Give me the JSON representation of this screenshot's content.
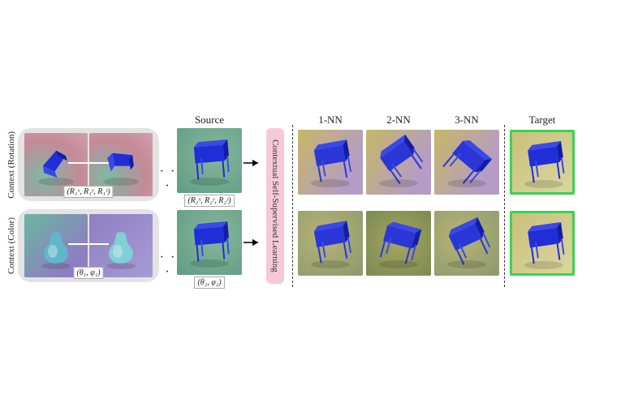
{
  "layout": {
    "figure_width": 770,
    "figure_height": 513,
    "tile_size_small": 78,
    "tile_size_med": 80,
    "context_box_bg": "#e4e3e3",
    "context_box_radius": 16,
    "cssl_bg": "#f7c9d8",
    "target_border_color": "#39d353",
    "dashed_sep_color": "#333333"
  },
  "sideLabels": {
    "rotation": "Context (Rotation)",
    "color": "Context (Color)"
  },
  "headers": {
    "source": "Source",
    "nn1": "1-NN",
    "nn2": "2-NN",
    "nn3": "3-NN",
    "target": "Target"
  },
  "cssl_label": "Contextual Self-Supervised Learning",
  "ellipsis": "· · ·",
  "context_rotation": {
    "param_label_1": "(R₁ˣ, R₁ʸ, R₁ᶻ)",
    "param_label_2": "(R₂ˣ, R₂ʸ, R₂ᶻ)",
    "tiles": [
      {
        "bg": "bg-pink-teal",
        "object": "block-blue",
        "obj_color": "#1f2ed6",
        "rot": -35
      },
      {
        "bg": "bg-pink-teal",
        "object": "block-blue",
        "obj_color": "#1f2ed6",
        "rot": 20
      }
    ],
    "source_tile": {
      "bg": "bg-green",
      "object": "table-blue",
      "obj_color": "#1f2ed6",
      "rot": -5
    }
  },
  "context_color": {
    "param_label_1": "(θ₁, φ₁)",
    "param_label_2": "(θ₂, φ₂)",
    "tiles": [
      {
        "bg": "bg-teal-purple",
        "object": "vase",
        "obj_color": "#5fb7c9",
        "rot": 0
      },
      {
        "bg": "bg-purple-lt",
        "object": "vase",
        "obj_color": "#7fd0d6",
        "rot": 0
      }
    ],
    "source_tile": {
      "bg": "bg-green",
      "object": "table-blue",
      "obj_color": "#1f2ed6",
      "rot": -5
    }
  },
  "nn": {
    "row_rotation": [
      {
        "bg": "bg-yellow-pur",
        "obj_color": "#2a37d6",
        "rot": -10,
        "object": "table-blue"
      },
      {
        "bg": "bg-yellow-pur",
        "obj_color": "#2a37d6",
        "rot": -35,
        "object": "table-blue"
      },
      {
        "bg": "bg-yellow-pur",
        "obj_color": "#2a37d6",
        "rot": 40,
        "object": "table-blue"
      }
    ],
    "row_color": [
      {
        "bg": "bg-oliveish",
        "obj_color": "#2a37d6",
        "rot": -10,
        "object": "table-blue"
      },
      {
        "bg": "bg-olive-d",
        "obj_color": "#2a37d6",
        "rot": 15,
        "object": "table-blue"
      },
      {
        "bg": "bg-oliveish",
        "obj_color": "#2a37d6",
        "rot": -25,
        "object": "table-blue"
      }
    ]
  },
  "target": {
    "row_rotation": {
      "bg": "bg-khaki",
      "obj_color": "#1f2ed6",
      "rot": -8,
      "object": "table-blue"
    },
    "row_color": {
      "bg": "bg-khaki",
      "obj_color": "#1f2ed6",
      "rot": -8,
      "object": "table-blue"
    }
  },
  "obj_defs": {
    "block-blue": {
      "type": "polygon-block"
    },
    "vase": {
      "type": "vase-shape"
    },
    "table-blue": {
      "type": "side-table"
    },
    "shadow_color": "#00000033"
  }
}
